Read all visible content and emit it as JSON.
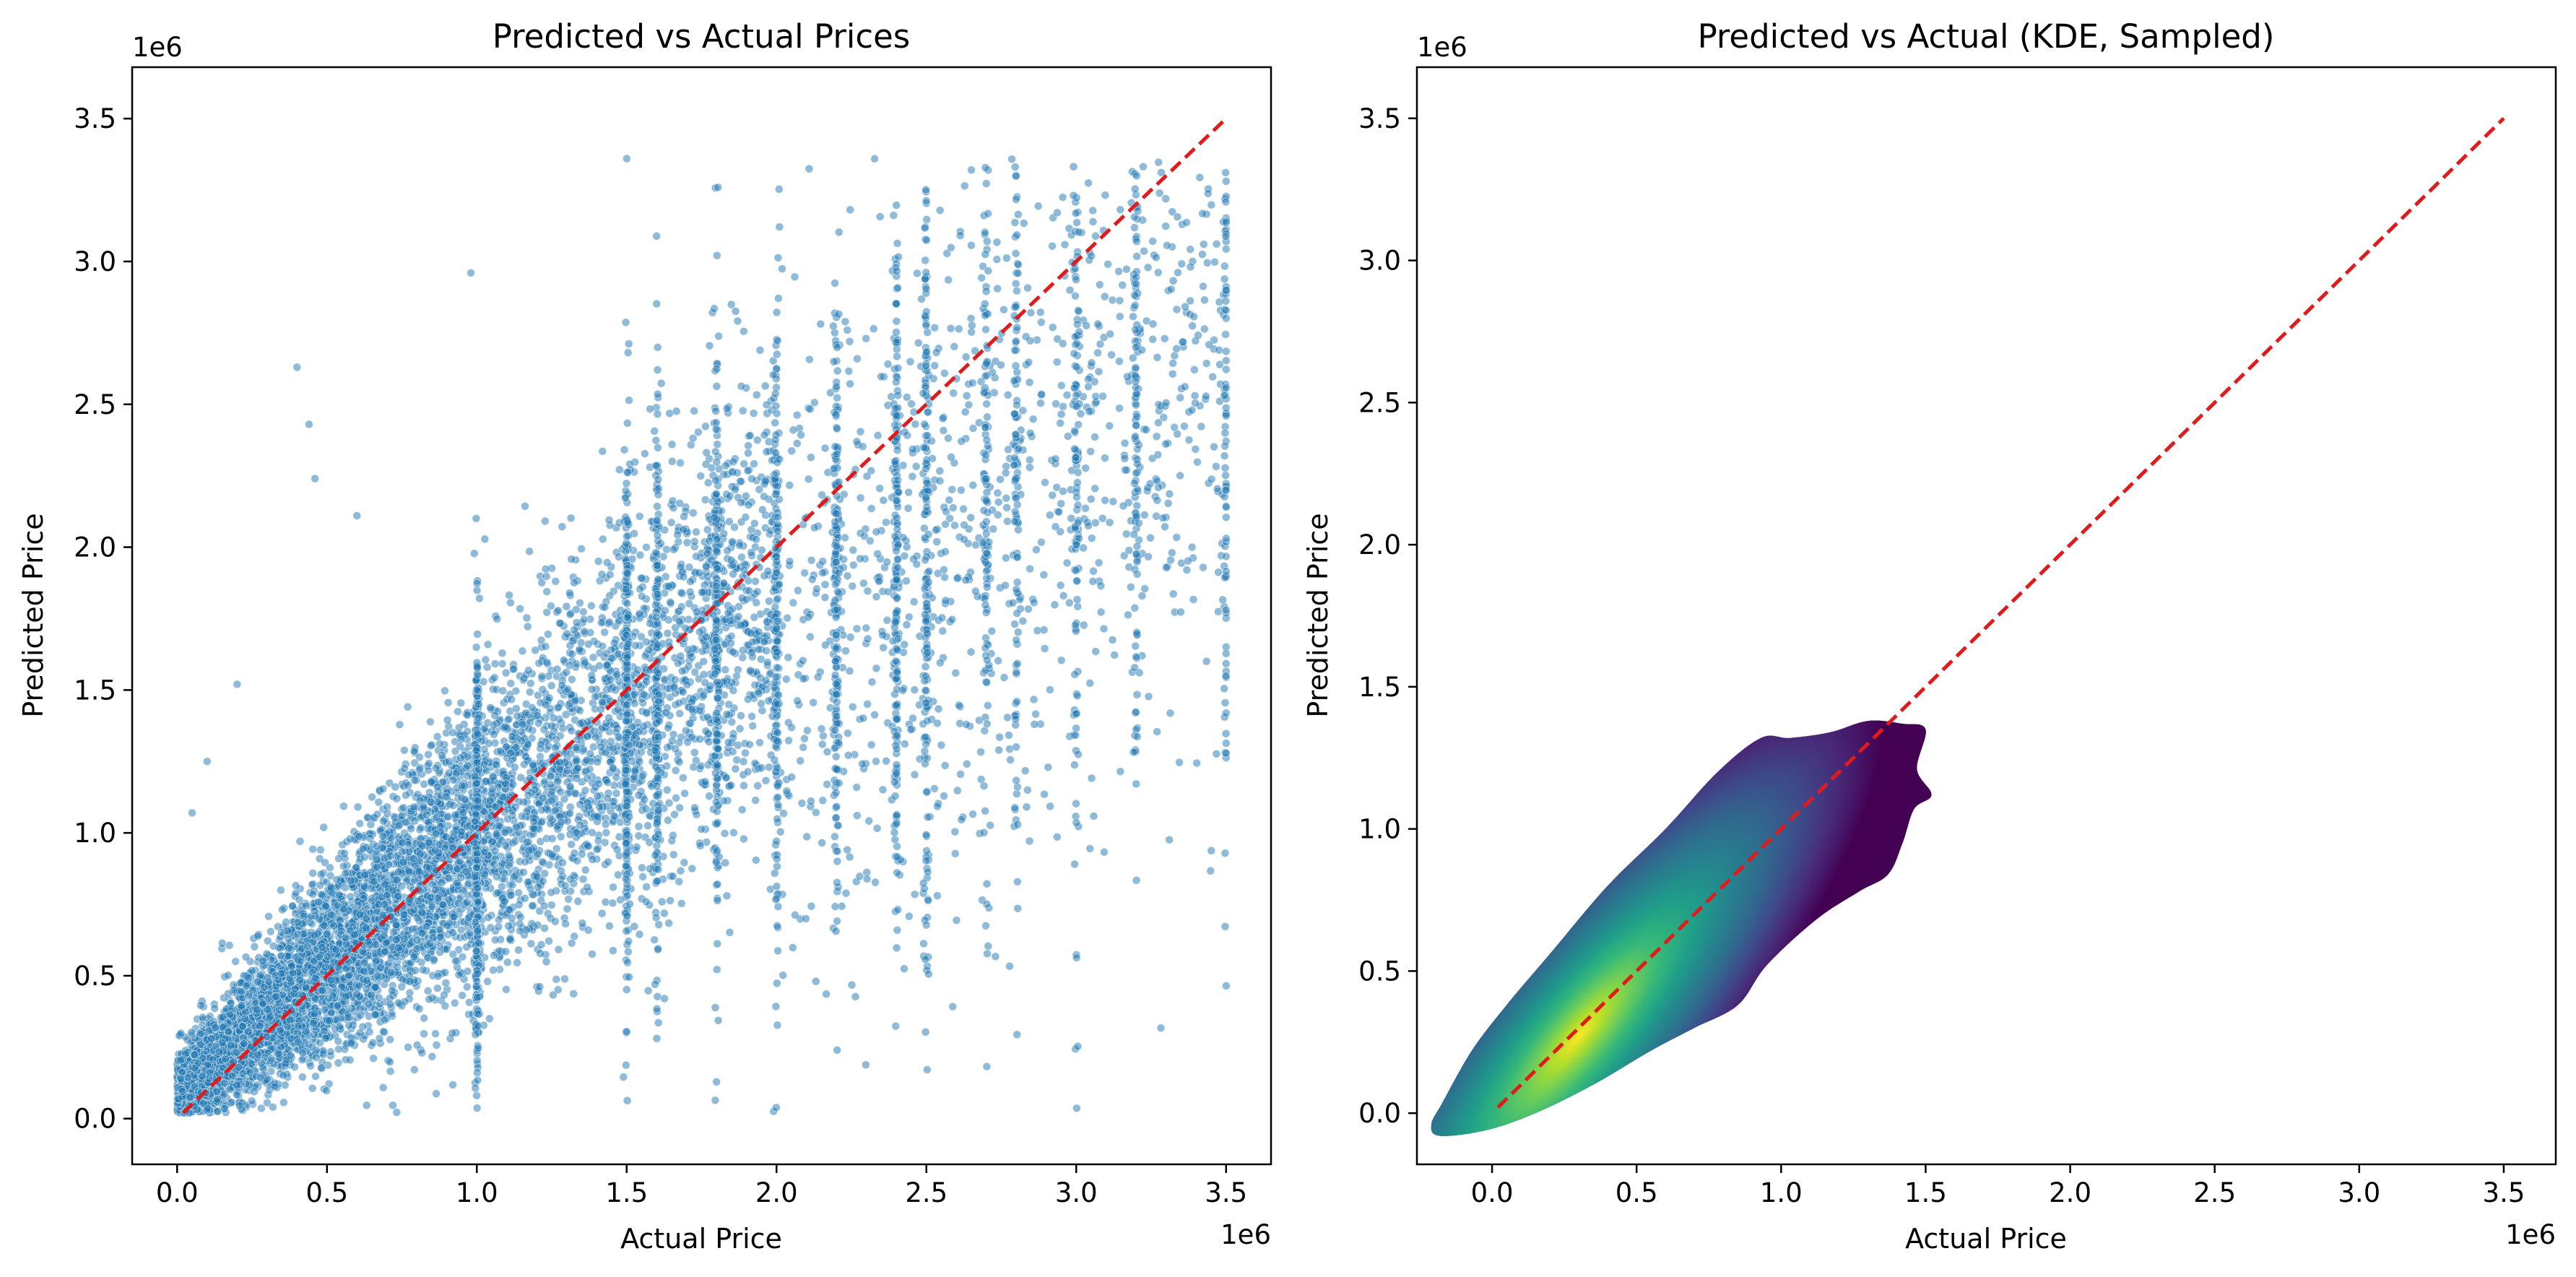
{
  "chart_data": [
    {
      "type": "scatter",
      "title": "Predicted vs Actual Prices",
      "xlabel": "Actual Price",
      "ylabel": "Predicted Price",
      "x_offset_label": "1e6",
      "y_offset_label": "1e6",
      "xlim": [
        -0.15,
        3.65
      ],
      "ylim": [
        -0.16,
        3.68
      ],
      "xticks": [
        0.0,
        0.5,
        1.0,
        1.5,
        2.0,
        2.5,
        3.0,
        3.5
      ],
      "xtick_labels": [
        "0.0",
        "0.5",
        "1.0",
        "1.5",
        "2.0",
        "2.5",
        "3.0",
        "3.5"
      ],
      "yticks": [
        0.0,
        0.5,
        1.0,
        1.5,
        2.0,
        2.5,
        3.0,
        3.5
      ],
      "ytick_labels": [
        "0.0",
        "0.5",
        "1.0",
        "1.5",
        "2.0",
        "2.5",
        "3.0",
        "3.5"
      ],
      "grid": false,
      "point_color": "#1f77b4",
      "point_edge_color": "#ffffff",
      "point_alpha": 0.5,
      "reference_line": {
        "x": [
          0.02,
          3.5
        ],
        "y": [
          0.02,
          3.5
        ],
        "color": "#e01b1b",
        "style": "dashed"
      },
      "point_summary": {
        "x_range": [
          0.0,
          3.5
        ],
        "y_range": [
          0.02,
          3.36
        ],
        "relationship": "y ≈ x with spread increasing with x; dense below x = 1.0, vertical striping at round price values",
        "density_clusters": [
          {
            "x": 0.3,
            "y": 0.35,
            "spread_x": 0.25,
            "spread_y": 0.2
          },
          {
            "x": 0.8,
            "y": 0.85,
            "spread_x": 0.3,
            "spread_y": 0.35
          },
          {
            "x": 1.4,
            "y": 1.3,
            "spread_x": 0.35,
            "spread_y": 0.5
          },
          {
            "x": 2.3,
            "y": 1.9,
            "spread_x": 0.5,
            "spread_y": 0.7
          },
          {
            "x": 3.2,
            "y": 2.3,
            "spread_x": 0.3,
            "spread_y": 0.8
          }
        ],
        "striped_x_values": [
          1.0,
          1.5,
          1.6,
          1.8,
          2.0,
          2.2,
          2.4,
          2.5,
          2.7,
          2.8,
          3.0,
          3.2,
          3.5
        ]
      }
    },
    {
      "type": "kde",
      "title": "Predicted vs Actual (KDE, Sampled)",
      "xlabel": "Actual Price",
      "ylabel": "Predicted Price",
      "x_offset_label": "1e6",
      "y_offset_label": "1e6",
      "xlim": [
        -0.26,
        3.68
      ],
      "ylim": [
        -0.18,
        3.68
      ],
      "xticks": [
        0.0,
        0.5,
        1.0,
        1.5,
        2.0,
        2.5,
        3.0,
        3.5
      ],
      "xtick_labels": [
        "0.0",
        "0.5",
        "1.0",
        "1.5",
        "2.0",
        "2.5",
        "3.0",
        "3.5"
      ],
      "yticks": [
        0.0,
        0.5,
        1.0,
        1.5,
        2.0,
        2.5,
        3.0,
        3.5
      ],
      "ytick_labels": [
        "0.0",
        "0.5",
        "1.0",
        "1.5",
        "2.0",
        "2.5",
        "3.0",
        "3.5"
      ],
      "grid": false,
      "colormap": "viridis",
      "peak": {
        "x": 0.3,
        "y": 0.27
      },
      "outer_contour": [
        [
          -0.18,
          -0.08
        ],
        [
          -0.02,
          -0.06
        ],
        [
          0.15,
          0.0
        ],
        [
          0.35,
          0.1
        ],
        [
          0.55,
          0.22
        ],
        [
          0.7,
          0.3
        ],
        [
          0.85,
          0.38
        ],
        [
          0.95,
          0.52
        ],
        [
          1.12,
          0.68
        ],
        [
          1.27,
          0.78
        ],
        [
          1.37,
          0.84
        ],
        [
          1.42,
          0.95
        ],
        [
          1.46,
          1.07
        ],
        [
          1.52,
          1.12
        ],
        [
          1.47,
          1.21
        ],
        [
          1.5,
          1.35
        ],
        [
          1.42,
          1.37
        ],
        [
          1.3,
          1.38
        ],
        [
          1.17,
          1.34
        ],
        [
          1.03,
          1.32
        ],
        [
          0.93,
          1.32
        ],
        [
          0.78,
          1.2
        ],
        [
          0.6,
          1.0
        ],
        [
          0.4,
          0.8
        ],
        [
          0.2,
          0.56
        ],
        [
          0.05,
          0.38
        ],
        [
          -0.07,
          0.22
        ],
        [
          -0.17,
          0.04
        ],
        [
          -0.21,
          -0.04
        ]
      ],
      "reference_line": {
        "x": [
          0.02,
          3.5
        ],
        "y": [
          0.02,
          3.5
        ],
        "color": "#e01b1b",
        "style": "dashed"
      }
    }
  ]
}
